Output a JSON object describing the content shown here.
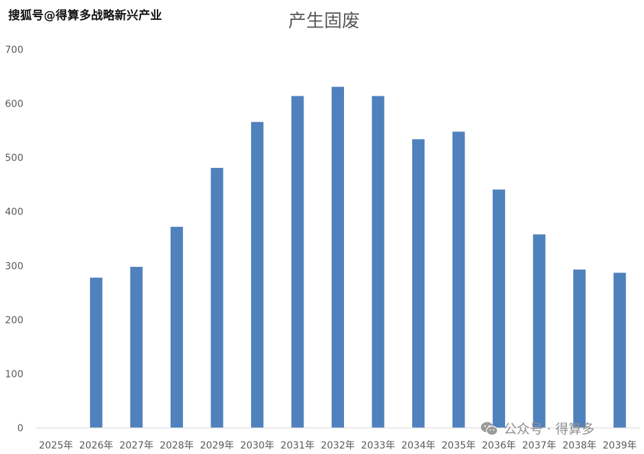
{
  "watermark_top": "搜狐号@得算多战略新兴产业",
  "watermark_bottom": "公众号 · 得算多",
  "colors": {
    "bar": "#4f81bd",
    "axis": "#d9d9d9",
    "text": "#595959"
  },
  "chart_data": {
    "type": "bar",
    "title": "产生固废",
    "xlabel": "",
    "ylabel": "",
    "categories": [
      "2025年",
      "2026年",
      "2027年",
      "2028年",
      "2029年",
      "2030年",
      "2031年",
      "2032年",
      "2033年",
      "2034年",
      "2035年",
      "2036年",
      "2037年",
      "2038年",
      "2039年"
    ],
    "values": [
      0,
      278,
      298,
      372,
      481,
      566,
      614,
      631,
      614,
      534,
      548,
      441,
      358,
      293,
      287
    ],
    "ylim": [
      0,
      700
    ],
    "yticks": [
      0,
      100,
      200,
      300,
      400,
      500,
      600,
      700
    ],
    "grid": false,
    "legend": "none"
  }
}
